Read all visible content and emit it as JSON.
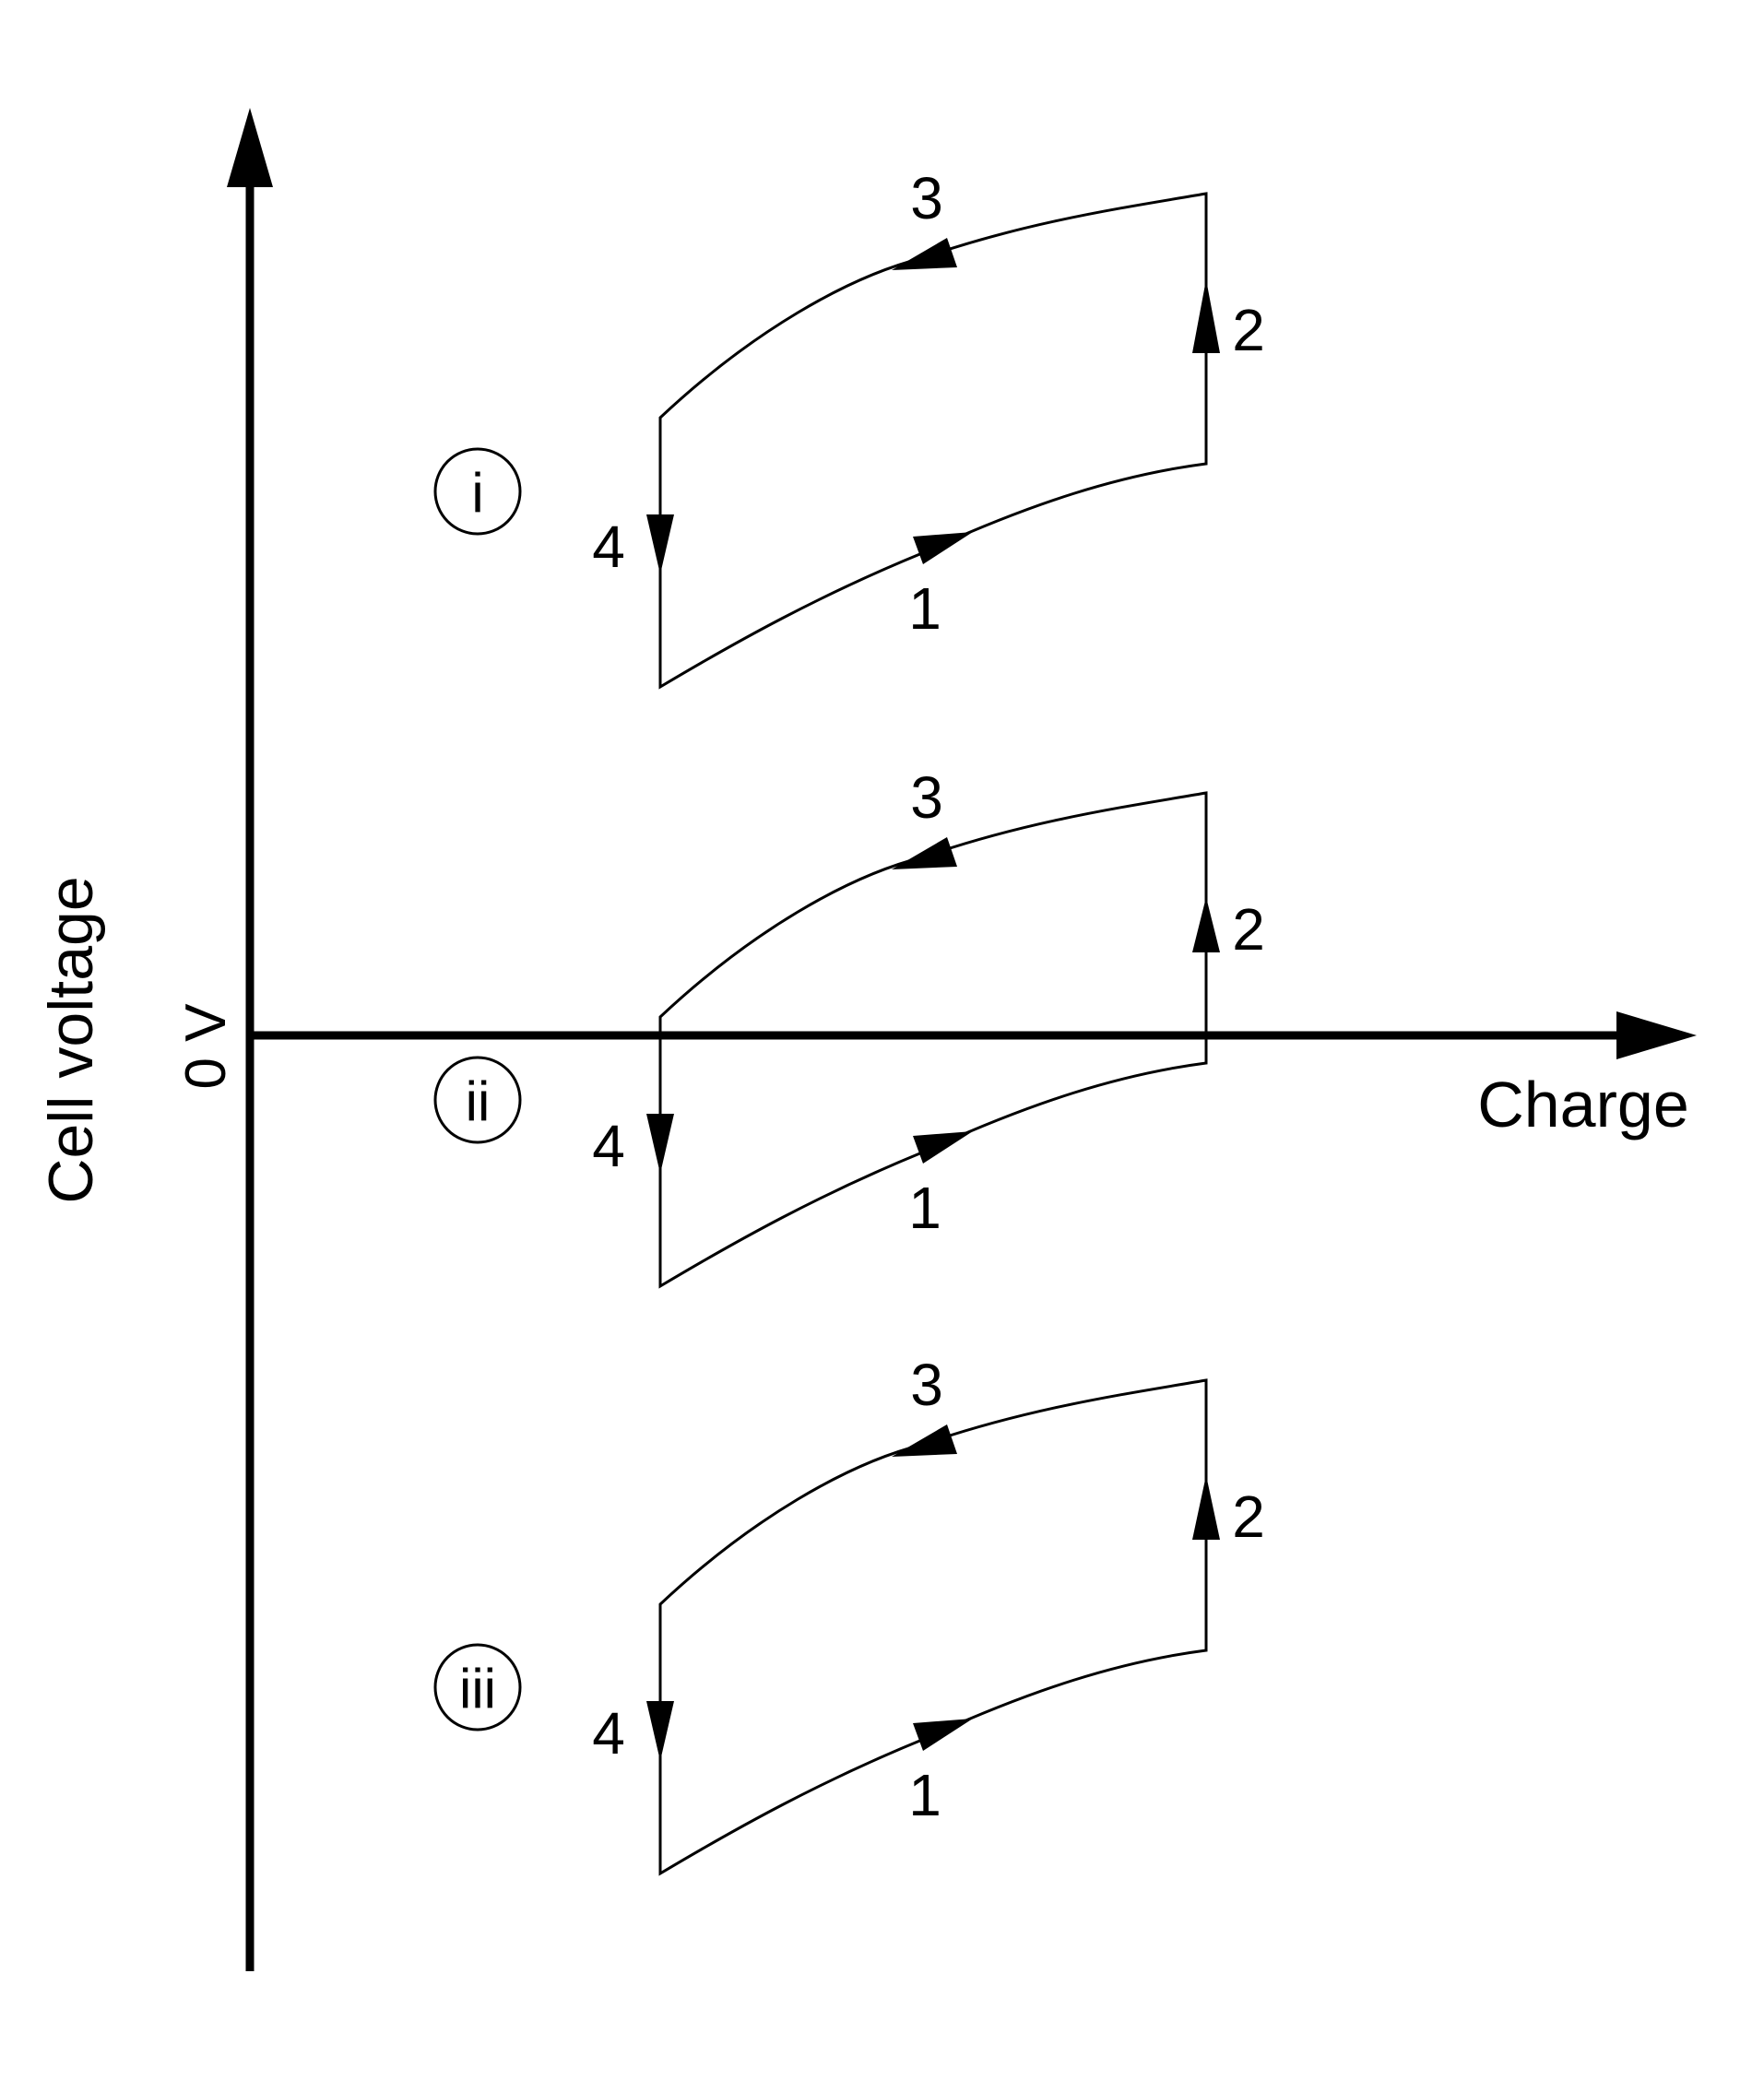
{
  "axes": {
    "y_label": "Cell voltage",
    "zero_label": "0 V",
    "x_label": "Charge"
  },
  "cycles": [
    {
      "id": "i",
      "label": "i",
      "steps": [
        "1",
        "2",
        "3",
        "4"
      ]
    },
    {
      "id": "ii",
      "label": "ii",
      "steps": [
        "1",
        "2",
        "3",
        "4"
      ]
    },
    {
      "id": "iii",
      "label": "iii",
      "steps": [
        "1",
        "2",
        "3",
        "4"
      ]
    }
  ],
  "colors": {
    "ink": "#000000",
    "background": "#ffffff"
  }
}
